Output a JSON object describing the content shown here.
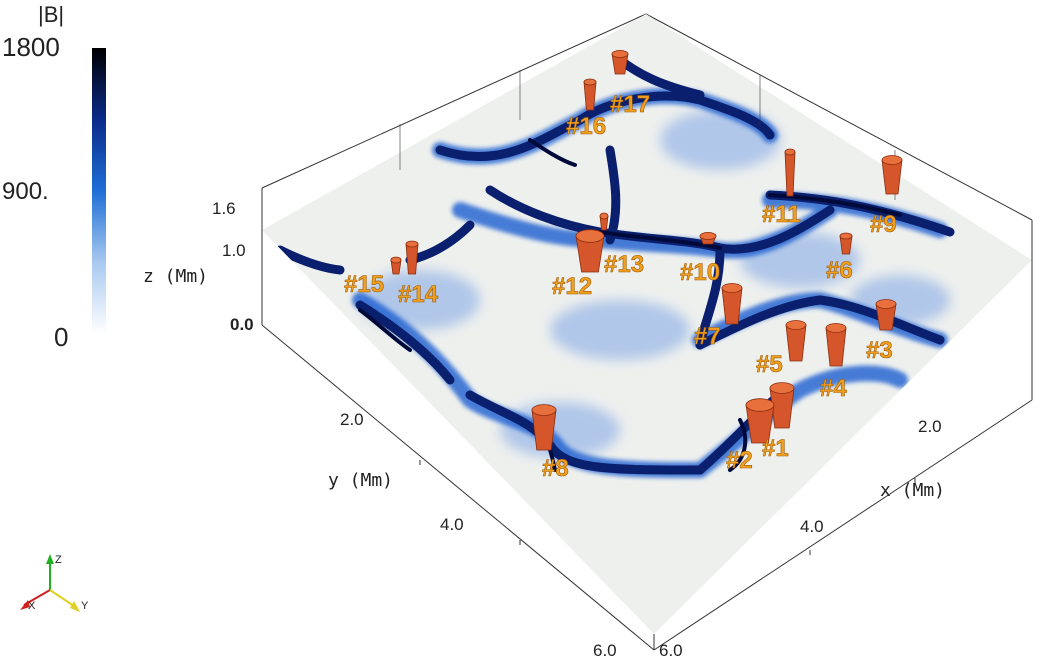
{
  "colorbar": {
    "title": "|B|",
    "max_label": "1800",
    "mid_label": "900.",
    "min_label": "0",
    "colors": [
      "#ffffff",
      "#a9c9f0",
      "#1f6fd6",
      "#0b2a8a",
      "#000000"
    ]
  },
  "axes": {
    "z_label": "z (Mm)",
    "y_label": "y (Mm)",
    "x_label": "x (Mm)",
    "z_ticks": [
      "1.6",
      "1.0",
      "0.0"
    ],
    "y_ticks": [
      "2.0",
      "4.0",
      "6.0"
    ],
    "x_ticks": [
      "2.0",
      "4.0",
      "6.0"
    ]
  },
  "triad": {
    "z": "Z",
    "x": "X",
    "y": "Y"
  },
  "colors": {
    "plane": "#eef0ee",
    "field_strong": "#0a1f6e",
    "field_mid": "#1f5fd0",
    "tube": "#d4562a",
    "label": "#f0a020"
  },
  "tubes": [
    "#1",
    "#2",
    "#3",
    "#4",
    "#5",
    "#6",
    "#7",
    "#8",
    "#9",
    "#10",
    "#11",
    "#12",
    "#13",
    "#14",
    "#15",
    "#16",
    "#17"
  ]
}
